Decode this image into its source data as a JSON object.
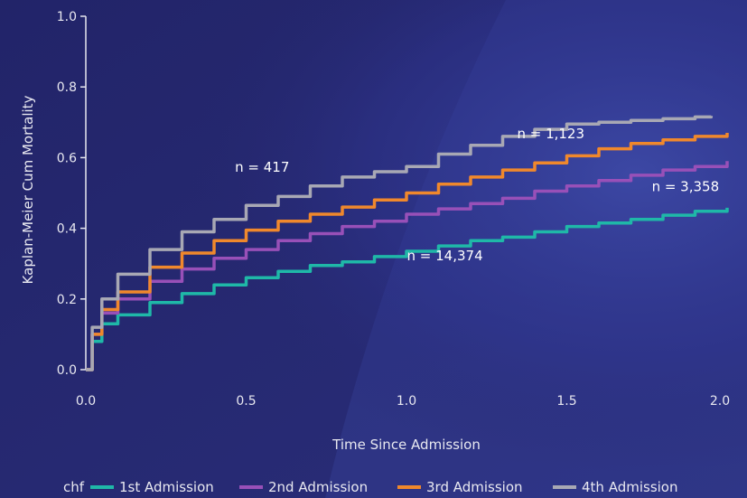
{
  "chart_data": {
    "type": "line",
    "title": "",
    "xlabel": "Time Since Admission",
    "ylabel": "Kaplan-Meier Cum Mortality",
    "xlim": [
      0.0,
      2.0
    ],
    "ylim": [
      0.0,
      1.0
    ],
    "x_ticks": [
      "0.0",
      "0.5",
      "1.0",
      "1.5",
      "2.0"
    ],
    "y_ticks": [
      "0.0",
      "0.2",
      "0.4",
      "0.6",
      "0.8",
      "1.0"
    ],
    "grid": false,
    "legend": {
      "placement": "bottom",
      "title": "chf"
    },
    "series": [
      {
        "name": "1st Admission",
        "color": "#1fb8a8",
        "x": [
          0.0,
          0.02,
          0.05,
          0.1,
          0.2,
          0.3,
          0.4,
          0.5,
          0.6,
          0.7,
          0.8,
          0.9,
          1.0,
          1.1,
          1.2,
          1.3,
          1.4,
          1.5,
          1.6,
          1.7,
          1.8,
          1.9,
          2.0
        ],
        "values": [
          0.0,
          0.08,
          0.13,
          0.155,
          0.19,
          0.215,
          0.24,
          0.26,
          0.278,
          0.295,
          0.305,
          0.32,
          0.335,
          0.35,
          0.365,
          0.375,
          0.39,
          0.405,
          0.415,
          0.425,
          0.437,
          0.448,
          0.458
        ]
      },
      {
        "name": "2nd Admission",
        "color": "#9850b8",
        "x": [
          0.0,
          0.02,
          0.05,
          0.1,
          0.2,
          0.3,
          0.4,
          0.5,
          0.6,
          0.7,
          0.8,
          0.9,
          1.0,
          1.1,
          1.2,
          1.3,
          1.4,
          1.5,
          1.6,
          1.7,
          1.8,
          1.9,
          2.0
        ],
        "values": [
          0.0,
          0.1,
          0.16,
          0.2,
          0.25,
          0.285,
          0.315,
          0.34,
          0.365,
          0.385,
          0.405,
          0.42,
          0.44,
          0.455,
          0.47,
          0.485,
          0.505,
          0.52,
          0.535,
          0.55,
          0.565,
          0.575,
          0.59
        ]
      },
      {
        "name": "3rd Admission",
        "color": "#f0882c",
        "x": [
          0.0,
          0.02,
          0.05,
          0.1,
          0.2,
          0.3,
          0.4,
          0.5,
          0.6,
          0.7,
          0.8,
          0.9,
          1.0,
          1.1,
          1.2,
          1.3,
          1.4,
          1.5,
          1.6,
          1.7,
          1.8,
          1.9,
          2.0
        ],
        "values": [
          0.0,
          0.1,
          0.17,
          0.22,
          0.29,
          0.33,
          0.365,
          0.395,
          0.42,
          0.44,
          0.46,
          0.48,
          0.5,
          0.525,
          0.545,
          0.565,
          0.585,
          0.605,
          0.625,
          0.64,
          0.65,
          0.66,
          0.67
        ]
      },
      {
        "name": "4th Admission",
        "color": "#a8a8b4",
        "x": [
          0.0,
          0.02,
          0.05,
          0.1,
          0.2,
          0.3,
          0.4,
          0.5,
          0.6,
          0.7,
          0.8,
          0.9,
          1.0,
          1.1,
          1.2,
          1.3,
          1.4,
          1.5,
          1.6,
          1.7,
          1.8,
          1.9,
          1.95
        ],
        "values": [
          0.0,
          0.12,
          0.2,
          0.27,
          0.34,
          0.39,
          0.425,
          0.465,
          0.49,
          0.52,
          0.545,
          0.56,
          0.575,
          0.61,
          0.635,
          0.66,
          0.68,
          0.695,
          0.7,
          0.705,
          0.71,
          0.715,
          0.718
        ]
      }
    ],
    "annotations": [
      {
        "text": "n = 417",
        "x": 0.55,
        "y": 0.56
      },
      {
        "text": "n = 1,123",
        "x": 1.45,
        "y": 0.655
      },
      {
        "text": "n = 3,358",
        "x": 1.87,
        "y": 0.505
      },
      {
        "text": "n = 14,374",
        "x": 1.12,
        "y": 0.31
      }
    ]
  }
}
